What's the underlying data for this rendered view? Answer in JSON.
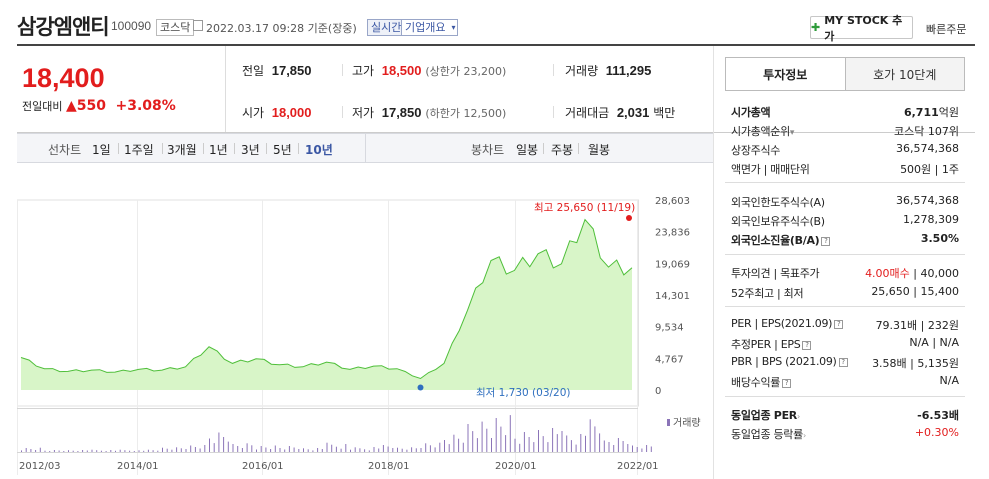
{
  "header": {
    "title": "삼강엠앤티",
    "code": "100090",
    "market_badge": "코스닥",
    "timestamp": "2022.03.17 09:28 기준(장중)",
    "realtime_badge": "실시간",
    "company_badge": "기업개요",
    "mystock_label": "MY STOCK 추가",
    "quick_order_label": "빠른주문"
  },
  "quote": {
    "price": "18,400",
    "change_label": "전일대비",
    "change_value": "550",
    "change_pct": "+3.08%",
    "prev_label": "전일",
    "prev_value": "17,850",
    "open_label": "시가",
    "open_value": "18,000",
    "high_label": "고가",
    "high_value": "18,500",
    "upper_limit": "(상한가 23,200)",
    "low_label": "저가",
    "low_value": "17,850",
    "lower_limit": "(하한가 12,500)",
    "volume_label": "거래량",
    "volume_value": "111,295",
    "amount_label": "거래대금",
    "amount_value": "2,031",
    "amount_unit": "백만"
  },
  "chart_tabs": {
    "line_label": "선차트",
    "periods": [
      "1일",
      "1주일",
      "3개월",
      "1년",
      "3년",
      "5년",
      "10년"
    ],
    "candle_label": "봉차트",
    "candles": [
      "일봉",
      "주봉",
      "월봉"
    ]
  },
  "chart_data": {
    "type": "area",
    "x_ticks": [
      "2012/03",
      "2014/01",
      "2016/01",
      "2018/01",
      "2020/01",
      "2022/01"
    ],
    "y_ticks": [
      "28,603",
      "23,836",
      "19,069",
      "14,301",
      "9,534",
      "4,767",
      "0"
    ],
    "ylim": [
      0,
      28603
    ],
    "max_label": "최고 25,650 (11/19)",
    "min_label": "최저 1,730 (03/20)",
    "volume_legend": "거래량",
    "series": [
      {
        "x": [
          "2012/03",
          "2012/09",
          "2013/03",
          "2013/09",
          "2014/03",
          "2014/09",
          "2015/03",
          "2015/09",
          "2016/01",
          "2016/06",
          "2016/12",
          "2017/06",
          "2017/12",
          "2018/06",
          "2018/12",
          "2019/06",
          "2019/12",
          "2020/03",
          "2020/06",
          "2020/09",
          "2020/12",
          "2021/03",
          "2021/06",
          "2021/09",
          "2021/11",
          "2022/01",
          "2022/03"
        ],
        "values": [
          4900,
          3200,
          2800,
          3000,
          2700,
          3100,
          3000,
          3500,
          6500,
          4000,
          4700,
          3800,
          3500,
          4200,
          3100,
          3600,
          3200,
          1730,
          4000,
          12000,
          19500,
          18000,
          20500,
          19000,
          25650,
          18500,
          18400
        ]
      }
    ],
    "volume": [
      2,
      1,
      1,
      1,
      1,
      1,
      2,
      3,
      9,
      4,
      3,
      3,
      2,
      4,
      2,
      3,
      2,
      4,
      8,
      14,
      17,
      10,
      12,
      9,
      14,
      6,
      3
    ]
  },
  "invest_tabs": [
    "투자정보",
    "호가 10단계"
  ],
  "invest": {
    "mcap_label": "시가총액",
    "mcap_value": "6,711",
    "mcap_unit": "억원",
    "mcap_rank_label": "시가총액순위",
    "mcap_rank_value": "코스닥 107위",
    "shares_label": "상장주식수",
    "shares_value": "36,574,368",
    "face_label": "액면가 | 매매단위",
    "face_value": "500원 | 1주",
    "foreign_limit_label": "외국인한도주식수(A)",
    "foreign_limit_value": "36,574,368",
    "foreign_hold_label": "외국인보유주식수(B)",
    "foreign_hold_value": "1,278,309",
    "foreign_ratio_label": "외국인소진율(B/A)",
    "foreign_ratio_value": "3.50%",
    "opinion_label": "투자의견 | 목표주가",
    "opinion_value": "4.00매수",
    "target_value": "| 40,000",
    "w52_label": "52주최고 | 최저",
    "w52_value": "25,650 | 15,400",
    "per_label": "PER | EPS(2021.09)",
    "per_value": "79.31배 | 232원",
    "est_per_label": "추정PER | EPS",
    "est_per_value": "N/A | N/A",
    "pbr_label": "PBR | BPS (2021.09)",
    "pbr_value": "3.58배 | 5,135원",
    "div_label": "배당수익률",
    "div_value": "N/A",
    "sector_per_label": "동일업종 PER",
    "sector_per_value": "-6.53배",
    "sector_chg_label": "동일업종 등락률",
    "sector_chg_value": "+0.30%"
  },
  "colors": {
    "up": "#e21d1d",
    "area_fill": "#d8f5c8",
    "area_line": "#4fbf3a",
    "volume": "#8b74b8",
    "accent_blue": "#3b57a4"
  }
}
